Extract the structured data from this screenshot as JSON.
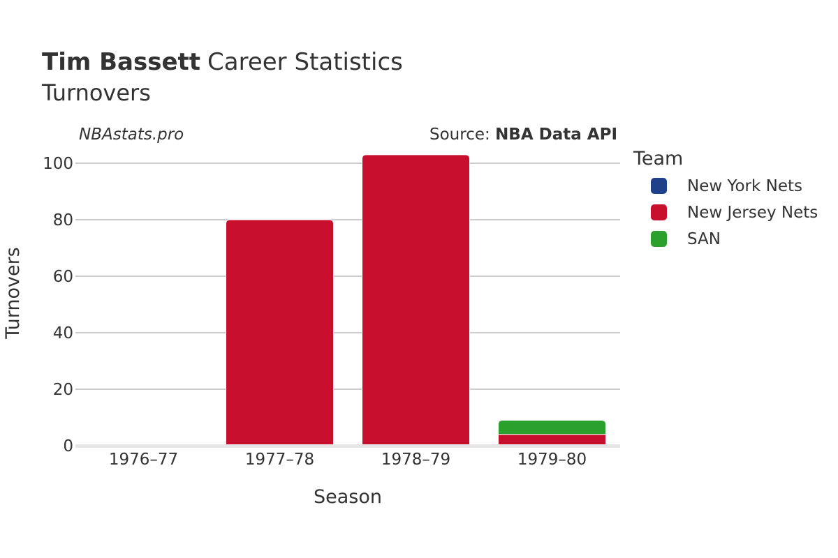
{
  "title": {
    "player": "Tim Bassett",
    "rest": "Career Statistics",
    "subtitle": "Turnovers"
  },
  "watermark": "NBAstats.pro",
  "source": {
    "prefix": "Source: ",
    "name": "NBA Data API"
  },
  "legend_title": "Team",
  "chart_data": {
    "type": "bar",
    "stacked": true,
    "xlabel": "Season",
    "ylabel": "Turnovers",
    "categories": [
      "1976–77",
      "1977–78",
      "1978–79",
      "1979–80"
    ],
    "yticks": [
      0,
      20,
      40,
      60,
      80,
      100
    ],
    "ylim": [
      0,
      105
    ],
    "grid": true,
    "legend_position": "right",
    "series": [
      {
        "name": "New York Nets",
        "color": "#1f418a",
        "values": [
          0,
          0,
          0,
          0
        ]
      },
      {
        "name": "New Jersey Nets",
        "color": "#c8102e",
        "values": [
          0,
          80,
          103,
          4
        ]
      },
      {
        "name": "SAN",
        "color": "#2ca02c",
        "values": [
          0,
          0,
          0,
          5
        ]
      }
    ]
  }
}
